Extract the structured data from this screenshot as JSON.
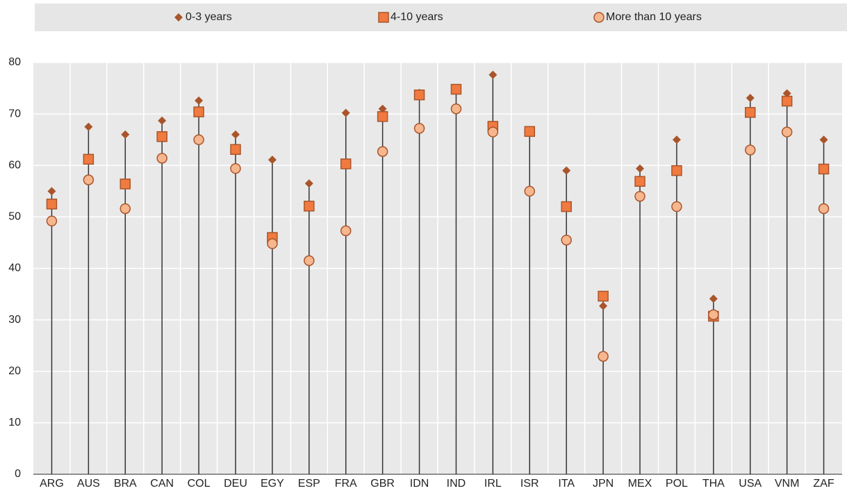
{
  "chart_data": {
    "type": "dot",
    "categories": [
      "ARG",
      "AUS",
      "BRA",
      "CAN",
      "COL",
      "DEU",
      "EGY",
      "ESP",
      "FRA",
      "GBR",
      "IDN",
      "IND",
      "IRL",
      "ISR",
      "ITA",
      "JPN",
      "MEX",
      "POL",
      "THA",
      "USA",
      "VNM",
      "ZAF"
    ],
    "series": [
      {
        "name": "0-3 years",
        "color": "#a9552b",
        "marker": "diamond",
        "values": [
          55,
          67.5,
          66,
          68.7,
          72.6,
          66,
          61.1,
          56.5,
          70.2,
          71,
          74.1,
          null,
          77.6,
          null,
          59,
          32.7,
          59.4,
          65,
          34.1,
          73.1,
          74,
          65
        ]
      },
      {
        "name": "4-10 years",
        "color": "#f07a40",
        "marker": "square",
        "values": [
          52.5,
          61.2,
          56.4,
          65.6,
          70.4,
          63.1,
          46,
          52.1,
          60.3,
          69.5,
          73.7,
          74.8,
          67.6,
          66.6,
          52,
          34.6,
          56.9,
          59,
          30.7,
          70.3,
          72.5,
          59.3
        ]
      },
      {
        "name": "More than 10 years",
        "color": "#f6b68e",
        "marker": "circle",
        "values": [
          49.2,
          57.2,
          51.6,
          61.4,
          65,
          59.4,
          44.8,
          41.5,
          47.3,
          62.7,
          67.2,
          71,
          66.5,
          55,
          45.5,
          22.9,
          54,
          52,
          31,
          63,
          66.5,
          51.6
        ]
      }
    ],
    "ylim": [
      0,
      80
    ],
    "yticks": [
      0,
      10,
      20,
      30,
      40,
      50,
      60,
      70,
      80
    ],
    "grid": true,
    "legend": "top"
  }
}
